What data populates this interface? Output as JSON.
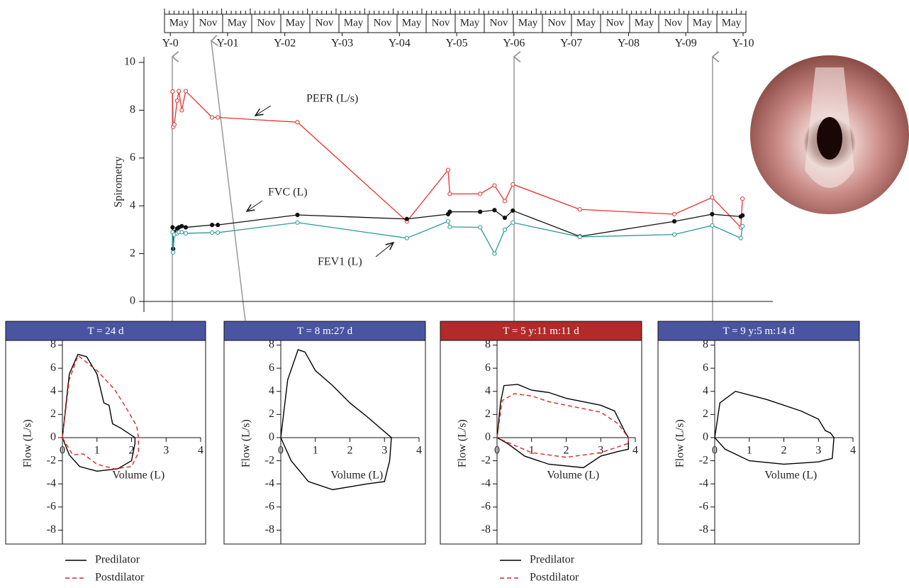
{
  "chart_data": [
    {
      "type": "line",
      "ylabel": "Spirometry",
      "xlim": [
        -0.46,
        10.52
      ],
      "ylim": [
        0,
        10
      ],
      "yticks": [
        0,
        2,
        4,
        6,
        8,
        10
      ],
      "xticks": [
        {
          "value": 0,
          "label": "Y-0"
        },
        {
          "value": 1,
          "label": "Y-01"
        },
        {
          "value": 2,
          "label": "Y-02"
        },
        {
          "value": 3,
          "label": "Y-03"
        },
        {
          "value": 4,
          "label": "Y-04"
        },
        {
          "value": 5,
          "label": "Y-05"
        },
        {
          "value": 6,
          "label": "Y-06"
        },
        {
          "value": 7,
          "label": "Y-07"
        },
        {
          "value": 8,
          "label": "Y-08"
        },
        {
          "value": 9,
          "label": "Y-09"
        },
        {
          "value": 10,
          "label": "Y-10"
        }
      ],
      "month_labels": [
        "May",
        "Nov",
        "May",
        "Nov",
        "May",
        "Nov",
        "May",
        "Nov",
        "May",
        "Nov",
        "May",
        "Nov",
        "May",
        "Nov",
        "May",
        "Nov",
        "May",
        "Nov",
        "May",
        "May"
      ],
      "x": [
        0.04,
        0.05,
        0.07,
        0.12,
        0.15,
        0.2,
        0.27,
        0.73,
        0.83,
        2.22,
        4.13,
        4.85,
        4.88,
        5.41,
        5.66,
        5.84,
        5.98,
        7.15,
        8.8,
        9.46,
        9.96,
        9.99
      ],
      "series": [
        {
          "name": "PEFR (L/s)",
          "color": "#e8302f",
          "values": [
            8.78,
            7.3,
            7.4,
            8.4,
            8.8,
            8.0,
            8.8,
            7.7,
            7.7,
            7.5,
            3.35,
            5.5,
            4.5,
            4.5,
            4.85,
            4.2,
            4.9,
            3.85,
            3.65,
            4.35,
            3.1,
            4.3
          ]
        },
        {
          "name": "FVC (L)",
          "color": "#111111",
          "values": [
            3.1,
            2.2,
            2.9,
            3.05,
            3.1,
            3.15,
            3.1,
            3.2,
            3.2,
            3.62,
            3.45,
            3.65,
            3.75,
            3.75,
            3.82,
            3.5,
            3.8,
            2.72,
            3.35,
            3.65,
            3.55,
            3.6
          ]
        },
        {
          "name": "FEV1 (L)",
          "color": "#2a9a9a",
          "values": [
            2.9,
            2.05,
            2.8,
            2.85,
            2.9,
            2.9,
            2.85,
            2.88,
            2.88,
            3.3,
            2.65,
            3.35,
            3.12,
            3.1,
            2.0,
            3.0,
            3.3,
            2.7,
            2.8,
            3.18,
            2.65,
            3.15
          ]
        }
      ]
    },
    {
      "type": "loop",
      "title": "T = 24 d",
      "header_color": "#4a55a2",
      "xlabel": "Volume (L)",
      "ylabel": "Flow (L/s)",
      "xlim": [
        0,
        4
      ],
      "ylim": [
        -9.2,
        8.4
      ],
      "xticks": [
        0,
        1,
        2,
        3,
        4
      ],
      "yticks": [
        -8,
        -6,
        -4,
        -2,
        0,
        2,
        4,
        6,
        8
      ],
      "series": [
        {
          "name": "Predilator",
          "color": "#000000",
          "dashed": false,
          "x": [
            0,
            0.2,
            0.45,
            0.7,
            1.0,
            1.2,
            1.35,
            1.45,
            1.7,
            2.1,
            2.1,
            2.0,
            1.6,
            1.0,
            0.5,
            0.2,
            0
          ],
          "values": [
            0,
            5.5,
            7.2,
            7.0,
            5.5,
            3.0,
            2.8,
            1.2,
            0.8,
            0,
            -0.5,
            -2.0,
            -2.7,
            -2.9,
            -2.5,
            -1.5,
            0
          ]
        },
        {
          "name": "Postdilator",
          "color": "#d62a2a",
          "dashed": true,
          "x": [
            0,
            0.2,
            0.45,
            1.0,
            1.5,
            1.8,
            2.15,
            2.2,
            2.2,
            2.0,
            1.5,
            1.0,
            0.6,
            0.3,
            0
          ],
          "values": [
            0,
            5,
            7.1,
            5.8,
            4.2,
            2.8,
            1,
            0,
            -1.3,
            -2.5,
            -2.7,
            -2.3,
            -1.4,
            -1.5,
            0
          ]
        }
      ]
    },
    {
      "type": "loop",
      "title": "T = 8 m:27 d",
      "header_color": "#4a55a2",
      "xlabel": "Volume (L)",
      "ylabel": "Flow (L/s)",
      "xlim": [
        0,
        4
      ],
      "ylim": [
        -9.2,
        8.4
      ],
      "xticks": [
        0,
        1,
        2,
        3,
        4
      ],
      "yticks": [
        -8,
        -6,
        -4,
        -2,
        0,
        2,
        4,
        6,
        8
      ],
      "series": [
        {
          "color": "#000000",
          "dashed": false,
          "x": [
            0,
            0.2,
            0.5,
            0.7,
            1.0,
            1.5,
            2.0,
            2.5,
            3.2,
            3.15,
            3.0,
            2.5,
            1.5,
            0.8,
            0.3,
            0
          ],
          "values": [
            0,
            5,
            7.6,
            7.4,
            5.8,
            4.5,
            3,
            1.8,
            0,
            -2,
            -3.8,
            -4,
            -4.5,
            -3.8,
            -2,
            0
          ]
        }
      ]
    },
    {
      "type": "loop",
      "title": "T = 5 y:11 m:11 d",
      "header_color": "#b22a2a",
      "xlabel": "Volume (L)",
      "ylabel": "Flow (L/s)",
      "xlim": [
        0,
        4
      ],
      "ylim": [
        -9.2,
        8.4
      ],
      "xticks": [
        0,
        1,
        2,
        3,
        4
      ],
      "yticks": [
        -8,
        -6,
        -4,
        -2,
        0,
        2,
        4,
        6,
        8
      ],
      "series": [
        {
          "name": "Predilator",
          "color": "#000000",
          "dashed": false,
          "x": [
            0,
            0.1,
            0.2,
            0.6,
            1,
            1.5,
            2,
            2.5,
            3,
            3.4,
            3.7,
            3.8,
            3.8,
            3.5,
            3,
            2.5,
            1.5,
            0.8,
            0.3,
            0
          ],
          "values": [
            0,
            3,
            4.5,
            4.6,
            4.1,
            3.9,
            3.4,
            3.1,
            2.8,
            2.3,
            0.5,
            0,
            -1,
            -1.2,
            -1.6,
            -2.6,
            -2.3,
            -1.6,
            -0.5,
            0
          ]
        },
        {
          "name": "Postdilator",
          "color": "#d62a2a",
          "dashed": true,
          "x": [
            0,
            0.15,
            0.5,
            1,
            1.5,
            2,
            2.5,
            3,
            3.5,
            3.8,
            3.8,
            3,
            2,
            1,
            0.3,
            0
          ],
          "values": [
            0,
            3.2,
            3.8,
            3.6,
            3.1,
            2.8,
            2.5,
            2.2,
            1.2,
            0,
            -0.5,
            -1.3,
            -1.7,
            -1.3,
            -0.4,
            0
          ]
        }
      ]
    },
    {
      "type": "loop",
      "title": "T = 9 y:5 m:14 d",
      "header_color": "#4a55a2",
      "xlabel": "Volume (L)",
      "ylabel": "Flow (L/s)",
      "xlim": [
        0,
        4
      ],
      "ylim": [
        -9.2,
        8.4
      ],
      "xticks": [
        0,
        1,
        2,
        3,
        4
      ],
      "yticks": [
        -8,
        -6,
        -4,
        -2,
        0,
        2,
        4,
        6,
        8
      ],
      "series": [
        {
          "color": "#000000",
          "dashed": false,
          "x": [
            0,
            0.15,
            0.6,
            1.5,
            2.5,
            3,
            3.2,
            3.35,
            3.45,
            3.4,
            3.0,
            2,
            1,
            0.3,
            0
          ],
          "values": [
            0,
            3,
            4,
            3.3,
            2.3,
            1.6,
            0.6,
            0.4,
            0,
            -1.8,
            -2.1,
            -2.3,
            -2.0,
            -1.0,
            0
          ]
        }
      ]
    }
  ]
}
